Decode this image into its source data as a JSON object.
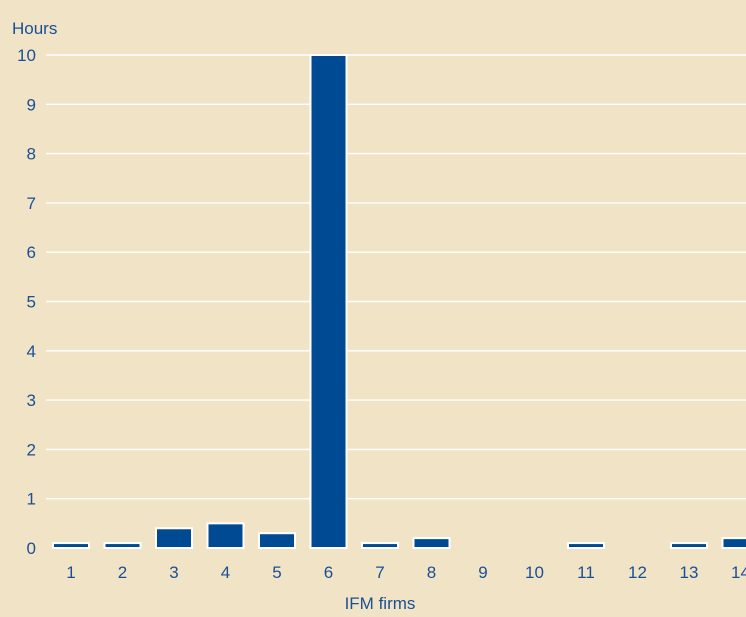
{
  "chart_data": {
    "type": "bar",
    "title": "",
    "xlabel": "IFM firms",
    "ylabel": "Hours",
    "categories": [
      "1",
      "2",
      "3",
      "4",
      "5",
      "6",
      "7",
      "8",
      "9",
      "10",
      "11",
      "12",
      "13",
      "14"
    ],
    "values": [
      0.1,
      0.1,
      0.4,
      0.5,
      0.3,
      10,
      0.1,
      0.2,
      0,
      0,
      0.1,
      0,
      0.1,
      0.2
    ],
    "ylim": [
      0,
      10
    ],
    "yticks": [
      "0",
      "1",
      "2",
      "3",
      "4",
      "5",
      "6",
      "7",
      "8",
      "9",
      "10"
    ],
    "grid": true,
    "colors": {
      "bar": "#004a93",
      "bar_border": "#ffffff",
      "background": "#f1e4c6",
      "text": "#1a4f95",
      "grid": "#ffffff"
    }
  }
}
